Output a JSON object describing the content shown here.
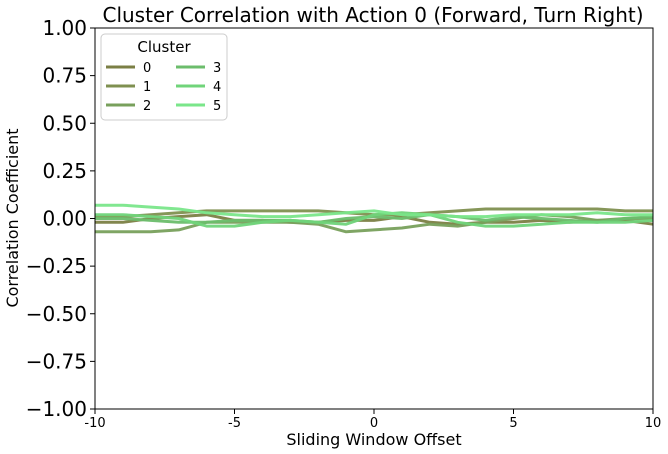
{
  "chart_data": {
    "type": "line",
    "title": "Cluster Correlation with Action 0 (Forward, Turn Right)",
    "xlabel": "Sliding Window Offset",
    "ylabel": "Correlation Coefficient",
    "xlim": [
      -10,
      10
    ],
    "ylim": [
      -1.0,
      1.0
    ],
    "xticks": [
      -10,
      -5,
      0,
      5,
      10
    ],
    "xtick_labels": [
      "-10",
      "-5",
      "0",
      "5",
      "10"
    ],
    "yticks": [
      -1.0,
      -0.75,
      -0.5,
      -0.25,
      0.0,
      0.25,
      0.5,
      0.75,
      1.0
    ],
    "ytick_labels": [
      "−1.00",
      "−0.75",
      "−0.50",
      "−0.25",
      "0.00",
      "0.25",
      "0.50",
      "0.75",
      "1.00"
    ],
    "grid": false,
    "legend": {
      "title": "Cluster",
      "placement": "top-left",
      "columns": 2
    },
    "x": [
      -10,
      -9,
      -8,
      -7,
      -6,
      -5,
      -4,
      -3,
      -2,
      -1,
      0,
      1,
      2,
      3,
      4,
      5,
      6,
      7,
      8,
      9,
      10
    ],
    "series": [
      {
        "name": "0",
        "color": "#7b7f45",
        "values": [
          -0.02,
          -0.02,
          0.0,
          0.01,
          0.02,
          -0.01,
          -0.01,
          -0.02,
          -0.02,
          -0.01,
          -0.01,
          0.01,
          -0.02,
          -0.03,
          -0.02,
          -0.02,
          -0.01,
          -0.02,
          -0.01,
          -0.01,
          -0.03
        ]
      },
      {
        "name": "1",
        "color": "#7f9050",
        "values": [
          0.01,
          0.01,
          0.02,
          0.03,
          0.04,
          0.04,
          0.04,
          0.04,
          0.04,
          0.03,
          0.02,
          0.02,
          0.03,
          0.04,
          0.05,
          0.05,
          0.05,
          0.05,
          0.05,
          0.04,
          0.04
        ]
      },
      {
        "name": "2",
        "color": "#78a05c",
        "values": [
          -0.07,
          -0.07,
          -0.07,
          -0.06,
          -0.02,
          -0.02,
          -0.02,
          -0.02,
          -0.03,
          -0.07,
          -0.06,
          -0.05,
          -0.03,
          -0.04,
          -0.02,
          0.0,
          0.02,
          0.01,
          -0.01,
          0.0,
          0.0
        ]
      },
      {
        "name": "3",
        "color": "#6cbd6c",
        "values": [
          0.0,
          0.0,
          -0.01,
          -0.02,
          -0.02,
          -0.01,
          -0.01,
          -0.01,
          -0.02,
          0.0,
          0.01,
          0.0,
          0.02,
          0.01,
          -0.01,
          0.01,
          0.0,
          -0.01,
          -0.02,
          0.0,
          0.01
        ]
      },
      {
        "name": "4",
        "color": "#70d47a",
        "values": [
          0.02,
          0.02,
          0.01,
          0.0,
          -0.04,
          -0.04,
          -0.02,
          -0.01,
          -0.02,
          -0.03,
          0.02,
          0.03,
          0.02,
          -0.02,
          -0.04,
          -0.04,
          -0.03,
          -0.02,
          -0.02,
          -0.02,
          -0.01
        ]
      },
      {
        "name": "5",
        "color": "#7ae68a",
        "values": [
          0.07,
          0.07,
          0.06,
          0.05,
          0.03,
          0.02,
          0.01,
          0.01,
          0.02,
          0.03,
          0.04,
          0.02,
          0.02,
          0.01,
          0.01,
          0.02,
          0.02,
          0.02,
          0.03,
          0.02,
          0.02
        ]
      }
    ]
  }
}
